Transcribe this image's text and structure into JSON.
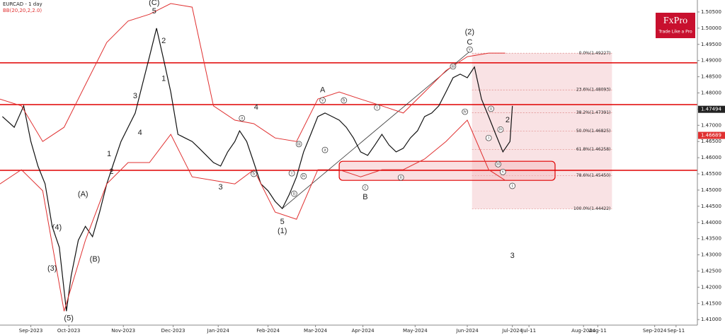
{
  "chart_data": {
    "type": "line",
    "title": "EURCAD - 1 day",
    "subtitle": "BB(20,20,2,2.0)",
    "brand": {
      "name": "FxPro",
      "tagline": "Trade Like a Pro"
    },
    "xlim": [
      0,
      294
    ],
    "ylim": [
      1.4083,
      1.5087
    ],
    "xticks": [
      {
        "value": 13,
        "label": "Sep-2023"
      },
      {
        "value": 29,
        "label": "Oct-2023"
      },
      {
        "value": 52,
        "label": "Nov-2023"
      },
      {
        "value": 73,
        "label": "Dec-2023"
      },
      {
        "value": 92,
        "label": "Jan-2024"
      },
      {
        "value": 113,
        "label": "Feb-2024"
      },
      {
        "value": 133,
        "label": "Mar-2024"
      },
      {
        "value": 153,
        "label": "Apr-2024"
      },
      {
        "value": 175,
        "label": "May-2024"
      },
      {
        "value": 197,
        "label": "Jun-2024"
      },
      {
        "value": 216,
        "label": "Jul-2024"
      },
      {
        "value": 223,
        "label": "Jul-11"
      },
      {
        "value": 246,
        "label": "Aug-2024"
      },
      {
        "value": 252,
        "label": "Aug-11"
      },
      {
        "value": 276,
        "label": "Sep-2024"
      },
      {
        "value": 285,
        "label": "Sep-11"
      }
    ],
    "yticks": [
      {
        "value": 1.41,
        "label": "1.41000"
      },
      {
        "value": 1.415,
        "label": "1.41500"
      },
      {
        "value": 1.42,
        "label": "1.42000"
      },
      {
        "value": 1.425,
        "label": "1.42500"
      },
      {
        "value": 1.43,
        "label": "1.43000"
      },
      {
        "value": 1.435,
        "label": "1.43500"
      },
      {
        "value": 1.44,
        "label": "1.44000"
      },
      {
        "value": 1.445,
        "label": "1.44500"
      },
      {
        "value": 1.45,
        "label": "1.45000"
      },
      {
        "value": 1.455,
        "label": "1.45500"
      },
      {
        "value": 1.46,
        "label": "1.46000"
      },
      {
        "value": 1.465,
        "label": "1.46500"
      },
      {
        "value": 1.47,
        "label": "1.47000"
      },
      {
        "value": 1.475,
        "label": "1.47500"
      },
      {
        "value": 1.48,
        "label": "1.48000"
      },
      {
        "value": 1.485,
        "label": "1.48500"
      },
      {
        "value": 1.49,
        "label": "1.49000"
      },
      {
        "value": 1.495,
        "label": "1.49500"
      },
      {
        "value": 1.5,
        "label": "1.50000"
      },
      {
        "value": 1.505,
        "label": "1.50500"
      }
    ],
    "price_labels": [
      {
        "value": 1.47494,
        "label": "1.47494",
        "color": "#222222"
      },
      {
        "value": 1.46689,
        "label": "1.46689",
        "color": "#e03030"
      }
    ],
    "series": [
      {
        "name": "EURCAD",
        "color": "#111111",
        "x": [
          1,
          6,
          10,
          13,
          16,
          19,
          22,
          25,
          28,
          30,
          33,
          36,
          39,
          42,
          45,
          48,
          51,
          54,
          57,
          60,
          63,
          66,
          69,
          72,
          75,
          78,
          81,
          84,
          87,
          90,
          93,
          96,
          99,
          101,
          104,
          107,
          110,
          113,
          116,
          119,
          122,
          125,
          128,
          131,
          134,
          137,
          140,
          143,
          146,
          149,
          152,
          155,
          158,
          161,
          164,
          167,
          170,
          173,
          176,
          179,
          182,
          185,
          188,
          191,
          194,
          197,
          200,
          203,
          206,
          209,
          212,
          215,
          216
        ],
        "values": [
          1.4727,
          1.4694,
          1.476,
          1.465,
          1.4574,
          1.4519,
          1.4388,
          1.4323,
          1.4126,
          1.4235,
          1.4345,
          1.4388,
          1.4356,
          1.4432,
          1.4519,
          1.4585,
          1.465,
          1.4694,
          1.4738,
          1.4825,
          1.4912,
          1.5,
          1.4902,
          1.4803,
          1.4672,
          1.4661,
          1.465,
          1.4629,
          1.4607,
          1.4585,
          1.4574,
          1.4618,
          1.465,
          1.4683,
          1.465,
          1.4585,
          1.4519,
          1.4498,
          1.4465,
          1.4443,
          1.4487,
          1.4541,
          1.4618,
          1.4672,
          1.4727,
          1.4738,
          1.4727,
          1.4716,
          1.4694,
          1.4661,
          1.4618,
          1.4607,
          1.4639,
          1.4672,
          1.4639,
          1.4618,
          1.4629,
          1.4661,
          1.4683,
          1.4727,
          1.4738,
          1.476,
          1.4803,
          1.4847,
          1.4858,
          1.4847,
          1.488,
          1.4781,
          1.4727,
          1.4672,
          1.4618,
          1.465,
          1.476
        ]
      },
      {
        "name": "BB upper",
        "color": "#e03030",
        "x": [
          0,
          9,
          18,
          27,
          36,
          45,
          54,
          63,
          72,
          81,
          90,
          99,
          107,
          116,
          125,
          134,
          143,
          152,
          161,
          170,
          179,
          188,
          197,
          206,
          213
        ],
        "values": [
          1.4781,
          1.476,
          1.465,
          1.4694,
          1.4825,
          1.4956,
          1.5022,
          1.5043,
          1.5076,
          1.5065,
          1.476,
          1.4716,
          1.4705,
          1.4661,
          1.465,
          1.4781,
          1.4803,
          1.4781,
          1.476,
          1.4738,
          1.4803,
          1.4869,
          1.4912,
          1.4923,
          1.4923
        ]
      },
      {
        "name": "BB lower",
        "color": "#e03030",
        "x": [
          0,
          9,
          18,
          27,
          36,
          45,
          54,
          63,
          72,
          81,
          90,
          99,
          107,
          116,
          125,
          134,
          143,
          152,
          161,
          170,
          179,
          188,
          197,
          206,
          213
        ],
        "values": [
          1.4519,
          1.4563,
          1.4498,
          1.4126,
          1.4345,
          1.4519,
          1.4585,
          1.4585,
          1.4672,
          1.4541,
          1.453,
          1.4519,
          1.4563,
          1.4432,
          1.441,
          1.4563,
          1.4563,
          1.4541,
          1.4563,
          1.4563,
          1.4596,
          1.465,
          1.4716,
          1.4563,
          1.453
        ]
      }
    ],
    "levels": [
      1.4893,
      1.4764,
      1.4561
    ],
    "level_color": "#e00000",
    "zone": {
      "x": [
        143,
        234
      ],
      "y": [
        1.453,
        1.4589
      ]
    },
    "trendline": {
      "x": [
        119,
        199
      ],
      "y": [
        1.4443,
        1.4934
      ]
    },
    "fib_box_x": [
      199,
      258
    ],
    "fib_levels": [
      {
        "value": 1.49227,
        "label": "0.0%(1.49227)"
      },
      {
        "value": 1.48093,
        "label": "23.6%(1.48093)"
      },
      {
        "value": 1.47391,
        "label": "38.2%(1.47391)"
      },
      {
        "value": 1.46825,
        "label": "50.0%(1.46825)"
      },
      {
        "value": 1.46258,
        "label": "61.8%(1.46258)"
      },
      {
        "value": 1.4545,
        "label": "78.6%(1.45450)"
      },
      {
        "value": 1.44422,
        "label": "100.0%(1.44422)"
      }
    ],
    "annotations": [
      {
        "text": "(C)",
        "x": 65,
        "y": 1.5078
      },
      {
        "text": "5",
        "x": 65,
        "y": 1.5052
      },
      {
        "text": "2",
        "x": 69,
        "y": 1.496
      },
      {
        "text": "1",
        "x": 69,
        "y": 1.4843
      },
      {
        "text": "3",
        "x": 57,
        "y": 1.479
      },
      {
        "text": "4",
        "x": 59,
        "y": 1.4677
      },
      {
        "text": "1",
        "x": 46,
        "y": 1.4611
      },
      {
        "text": "2",
        "x": 47,
        "y": 1.4556
      },
      {
        "text": "(A)",
        "x": 35,
        "y": 1.4487
      },
      {
        "text": "(4)",
        "x": 24,
        "y": 1.4384
      },
      {
        "text": "(B)",
        "x": 40,
        "y": 1.4286
      },
      {
        "text": "(3)",
        "x": 22,
        "y": 1.4257
      },
      {
        "text": "(5)",
        "x": 29,
        "y": 1.4104
      },
      {
        "text": "4",
        "x": 108,
        "y": 1.4755
      },
      {
        "text": "3",
        "x": 93,
        "y": 1.4508
      },
      {
        "text": "5",
        "x": 119,
        "y": 1.4401
      },
      {
        "text": "(1)",
        "x": 119,
        "y": 1.4373
      },
      {
        "text": "A",
        "x": 136,
        "y": 1.4808
      },
      {
        "text": "B",
        "x": 154,
        "y": 1.4478
      },
      {
        "text": "(2)",
        "x": 198,
        "y": 1.4987
      },
      {
        "text": "C",
        "x": 198,
        "y": 1.4956
      },
      {
        "text": "2",
        "x": 214,
        "y": 1.4716
      },
      {
        "text": "3",
        "x": 216,
        "y": 1.4297
      }
    ],
    "circled": [
      {
        "text": "a",
        "x": 102,
        "y": 1.4722
      },
      {
        "text": "b",
        "x": 145,
        "y": 1.4777
      },
      {
        "text": "c",
        "x": 154,
        "y": 1.4508
      },
      {
        "text": "b",
        "x": 107,
        "y": 1.455
      },
      {
        "text": "a",
        "x": 137,
        "y": 1.4624
      },
      {
        "text": "i",
        "x": 123,
        "y": 1.4552
      },
      {
        "text": "ii",
        "x": 124,
        "y": 1.4489
      },
      {
        "text": "iii",
        "x": 126,
        "y": 1.4642
      },
      {
        "text": "iv",
        "x": 128,
        "y": 1.4543
      },
      {
        "text": "v",
        "x": 136,
        "y": 1.4777
      },
      {
        "text": "i",
        "x": 159,
        "y": 1.4755
      },
      {
        "text": "ii",
        "x": 169,
        "y": 1.4539
      },
      {
        "text": "iii",
        "x": 191,
        "y": 1.4882
      },
      {
        "text": "iv",
        "x": 196,
        "y": 1.4742
      },
      {
        "text": "v",
        "x": 198,
        "y": 1.4934
      },
      {
        "text": "ii",
        "x": 207,
        "y": 1.4751
      },
      {
        "text": "iv",
        "x": 211,
        "y": 1.4687
      },
      {
        "text": "i",
        "x": 206,
        "y": 1.4661
      },
      {
        "text": "iii",
        "x": 210,
        "y": 1.458
      },
      {
        "text": "v",
        "x": 212,
        "y": 1.4556
      },
      {
        "text": "i",
        "x": 216,
        "y": 1.4513
      }
    ]
  }
}
